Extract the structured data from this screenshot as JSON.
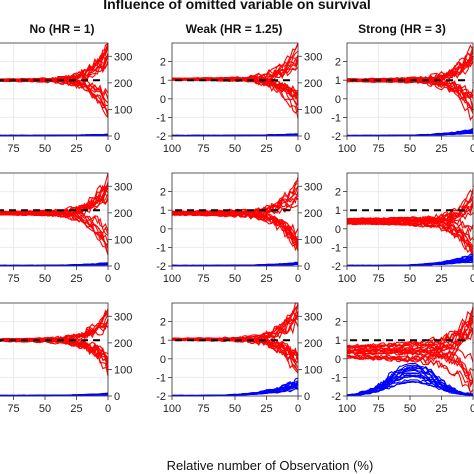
{
  "chart_data": {
    "type": "line",
    "title": "Influence of  omitted variable on survival",
    "xlabel": "Relative number of Observation (%)",
    "columns": [
      {
        "label": "No (HR = 1)"
      },
      {
        "label": "Weak (HR = 1.25)"
      },
      {
        "label": "Strong (HR = 3)"
      }
    ],
    "rows": 3,
    "x_ticks": [
      "100",
      "75",
      "50",
      "25",
      "0"
    ],
    "x_range": [
      100,
      0
    ],
    "y_left_ticks": [
      "2",
      "1",
      "0",
      "-1",
      "-2"
    ],
    "y_left_range": [
      -2,
      3
    ],
    "y_right_ticks": [
      "300",
      "200",
      "100",
      "0"
    ],
    "y_right_range": [
      0,
      350
    ],
    "reference_line_y": 1,
    "series": [
      {
        "color": "#ff0000",
        "axis": "left",
        "kind": "estimate trajectories"
      },
      {
        "color": "#0000ff",
        "axis": "right",
        "kind": "count trajectories"
      },
      {
        "color": "#000000",
        "axis": "left",
        "kind": "dashed reference"
      }
    ],
    "panels": [
      {
        "row": 0,
        "col": 0,
        "est_level": 1.0,
        "est_spread": 0.05,
        "end_spread": 2.0,
        "blue_peak": 5,
        "blue_hump": false
      },
      {
        "row": 0,
        "col": 1,
        "est_level": 1.05,
        "est_spread": 0.05,
        "end_spread": 2.0,
        "blue_peak": 6,
        "blue_hump": false
      },
      {
        "row": 0,
        "col": 2,
        "est_level": 1.0,
        "est_spread": 0.08,
        "end_spread": 2.2,
        "blue_peak": 25,
        "blue_hump": false
      },
      {
        "row": 1,
        "col": 0,
        "est_level": 0.85,
        "est_spread": 0.08,
        "end_spread": 2.0,
        "blue_peak": 10,
        "blue_hump": false
      },
      {
        "row": 1,
        "col": 1,
        "est_level": 0.85,
        "est_spread": 0.1,
        "end_spread": 2.0,
        "blue_peak": 12,
        "blue_hump": false
      },
      {
        "row": 1,
        "col": 2,
        "est_level": 0.4,
        "est_spread": 0.15,
        "end_spread": 2.0,
        "blue_peak": 40,
        "blue_hump": false
      },
      {
        "row": 2,
        "col": 0,
        "est_level": 1.0,
        "est_spread": 0.06,
        "end_spread": 2.0,
        "blue_peak": 8,
        "blue_hump": false
      },
      {
        "row": 2,
        "col": 1,
        "est_level": 1.05,
        "est_spread": 0.06,
        "end_spread": 2.0,
        "blue_peak": 60,
        "blue_hump": false
      },
      {
        "row": 2,
        "col": 2,
        "est_level": 0.35,
        "est_spread": 0.35,
        "end_spread": 2.5,
        "blue_peak": 125,
        "blue_hump": true
      }
    ]
  }
}
